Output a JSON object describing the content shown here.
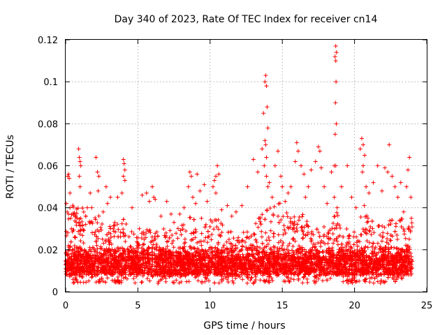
{
  "chart_data": {
    "type": "scatter",
    "title": "Day 340 of 2023, Rate Of TEC Index for receiver cn14",
    "xlabel": "GPS time / hours",
    "ylabel": "ROTI / TECUs",
    "xlim": [
      0,
      25
    ],
    "ylim": [
      0,
      0.12
    ],
    "xticks": [
      0,
      5,
      10,
      15,
      20,
      25
    ],
    "xtick_labels": [
      "0",
      "5",
      "10",
      "15",
      "20",
      "25"
    ],
    "yticks": [
      0,
      0.02,
      0.04,
      0.06,
      0.08,
      0.1,
      0.12
    ],
    "ytick_labels": [
      "0",
      "0.02",
      "0.04",
      "0.06",
      "0.08",
      "0.1",
      "0.12"
    ],
    "grid": true,
    "marker": "+",
    "color": "#ff0000",
    "series": [
      {
        "name": "cn14",
        "x": [
          0.05,
          0.1,
          0.15,
          0.2,
          0.25,
          0.3,
          0.35,
          0.4,
          0.2,
          0.25,
          0.9,
          0.95,
          1.0,
          1.05,
          0.95,
          1.0,
          1.5,
          1.7,
          1.8,
          2.1,
          2.2,
          2.3,
          2.25,
          2.6,
          2.8,
          2.9,
          3.1,
          3.4,
          3.6,
          3.9,
          4.0,
          4.05,
          4.1,
          4.0,
          4.1,
          4.6,
          5.1,
          5.3,
          5.6,
          5.8,
          6.0,
          6.1,
          6.2,
          6.6,
          7.0,
          7.3,
          7.5,
          7.9,
          8.2,
          8.5,
          8.6,
          8.7,
          8.8,
          9.0,
          9.1,
          9.3,
          9.4,
          9.6,
          9.8,
          10.2,
          10.3,
          10.4,
          10.5,
          10.6,
          10.4,
          10.8,
          11.2,
          11.5,
          11.8,
          12.2,
          12.6,
          13.0,
          13.3,
          13.6,
          13.7,
          13.8,
          13.85,
          13.9,
          13.95,
          14.0,
          13.8,
          13.85,
          13.9,
          13.75,
          13.9,
          14.0,
          14.1,
          14.3,
          14.5,
          14.7,
          14.9,
          15.0,
          15.2,
          15.4,
          15.6,
          15.9,
          16.0,
          16.1,
          16.3,
          16.5,
          16.6,
          16.8,
          17.0,
          17.3,
          17.5,
          17.6,
          17.7,
          17.9,
          18.1,
          18.4,
          18.6,
          18.65,
          18.7,
          18.75,
          18.7,
          18.72,
          18.68,
          18.74,
          18.66,
          18.7,
          18.6,
          18.8,
          19.1,
          19.5,
          19.8,
          20.1,
          20.4,
          20.5,
          20.6,
          20.7,
          20.6,
          20.55,
          20.8,
          21.0,
          21.3,
          21.6,
          21.9,
          22.1,
          22.3,
          22.4,
          22.6,
          22.8,
          23.0,
          23.2,
          23.4,
          23.6,
          23.7,
          23.8,
          23.9
        ],
        "y": [
          0.042,
          0.038,
          0.055,
          0.056,
          0.054,
          0.047,
          0.035,
          0.03,
          0.022,
          0.02,
          0.068,
          0.064,
          0.062,
          0.06,
          0.055,
          0.05,
          0.04,
          0.047,
          0.04,
          0.064,
          0.057,
          0.055,
          0.048,
          0.038,
          0.05,
          0.042,
          0.045,
          0.033,
          0.045,
          0.047,
          0.063,
          0.061,
          0.058,
          0.055,
          0.053,
          0.04,
          0.03,
          0.046,
          0.047,
          0.043,
          0.05,
          0.045,
          0.044,
          0.036,
          0.043,
          0.037,
          0.033,
          0.037,
          0.04,
          0.05,
          0.057,
          0.055,
          0.045,
          0.042,
          0.056,
          0.048,
          0.035,
          0.051,
          0.043,
          0.05,
          0.053,
          0.055,
          0.06,
          0.056,
          0.047,
          0.039,
          0.041,
          0.036,
          0.038,
          0.041,
          0.05,
          0.063,
          0.057,
          0.068,
          0.085,
          0.1,
          0.103,
          0.098,
          0.088,
          0.078,
          0.072,
          0.07,
          0.064,
          0.06,
          0.055,
          0.05,
          0.052,
          0.045,
          0.06,
          0.067,
          0.055,
          0.05,
          0.043,
          0.047,
          0.05,
          0.062,
          0.071,
          0.067,
          0.06,
          0.056,
          0.045,
          0.05,
          0.058,
          0.062,
          0.069,
          0.067,
          0.059,
          0.05,
          0.042,
          0.057,
          0.06,
          0.112,
          0.117,
          0.114,
          0.11,
          0.1,
          0.09,
          0.08,
          0.075,
          0.06,
          0.045,
          0.04,
          0.05,
          0.06,
          0.045,
          0.04,
          0.068,
          0.073,
          0.07,
          0.065,
          0.06,
          0.057,
          0.05,
          0.047,
          0.052,
          0.06,
          0.048,
          0.059,
          0.057,
          0.07,
          0.055,
          0.05,
          0.045,
          0.052,
          0.038,
          0.05,
          0.058,
          0.064,
          0.045
        ]
      }
    ],
    "dense_band": {
      "x_start": 0,
      "x_end": 24,
      "y_floor": 0.004,
      "y_base": 0.008,
      "y_typical_top": 0.03
    }
  }
}
